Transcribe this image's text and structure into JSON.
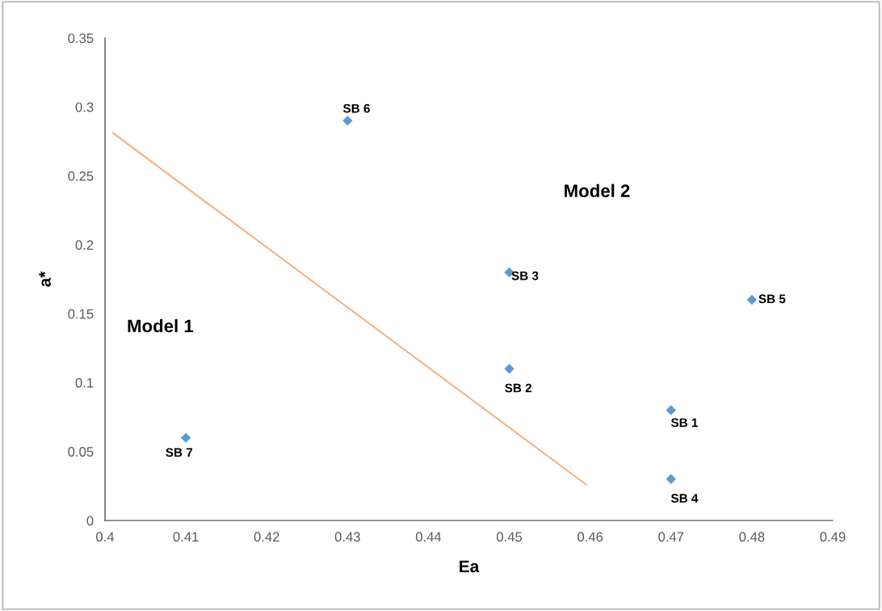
{
  "chart_data": {
    "type": "scatter",
    "xlabel": "Ea",
    "ylabel": "a*",
    "series": [
      {
        "color": "#5b9bd5",
        "marker": "diamond",
        "x": [
          0.47,
          0.45,
          0.45,
          0.47,
          0.48,
          0.43,
          0.41
        ],
        "values": [
          0.08,
          0.11,
          0.18,
          0.03,
          0.16,
          0.29,
          0.06
        ]
      },
      {
        "type": "line",
        "color": "#f4b183",
        "x": [
          0.401,
          0.4595
        ],
        "values": [
          0.281,
          0.026
        ]
      }
    ],
    "annotations": [
      {
        "text": "SB 1",
        "x": 0.47,
        "y": 0.08
      },
      {
        "text": "SB 2",
        "x": 0.45,
        "y": 0.11
      },
      {
        "text": "SB 3",
        "x": 0.45,
        "y": 0.18
      },
      {
        "text": "SB 4",
        "x": 0.47,
        "y": 0.03
      },
      {
        "text": "SB 5",
        "x": 0.48,
        "y": 0.16
      },
      {
        "text": "SB 6",
        "x": 0.43,
        "y": 0.29
      },
      {
        "text": "SB 7",
        "x": 0.41,
        "y": 0.06
      },
      "Model 1",
      "Model 2"
    ],
    "xlim": [
      0.4,
      0.49
    ],
    "ylim": [
      0,
      0.35
    ],
    "xticks": [
      0.4,
      0.41,
      0.42,
      0.43,
      0.44,
      0.45,
      0.46,
      0.47,
      0.48,
      0.49
    ],
    "yticks": [
      0,
      0.05,
      0.1,
      0.15,
      0.2,
      0.25,
      0.3,
      0.35
    ],
    "grid": false,
    "legend": false
  }
}
